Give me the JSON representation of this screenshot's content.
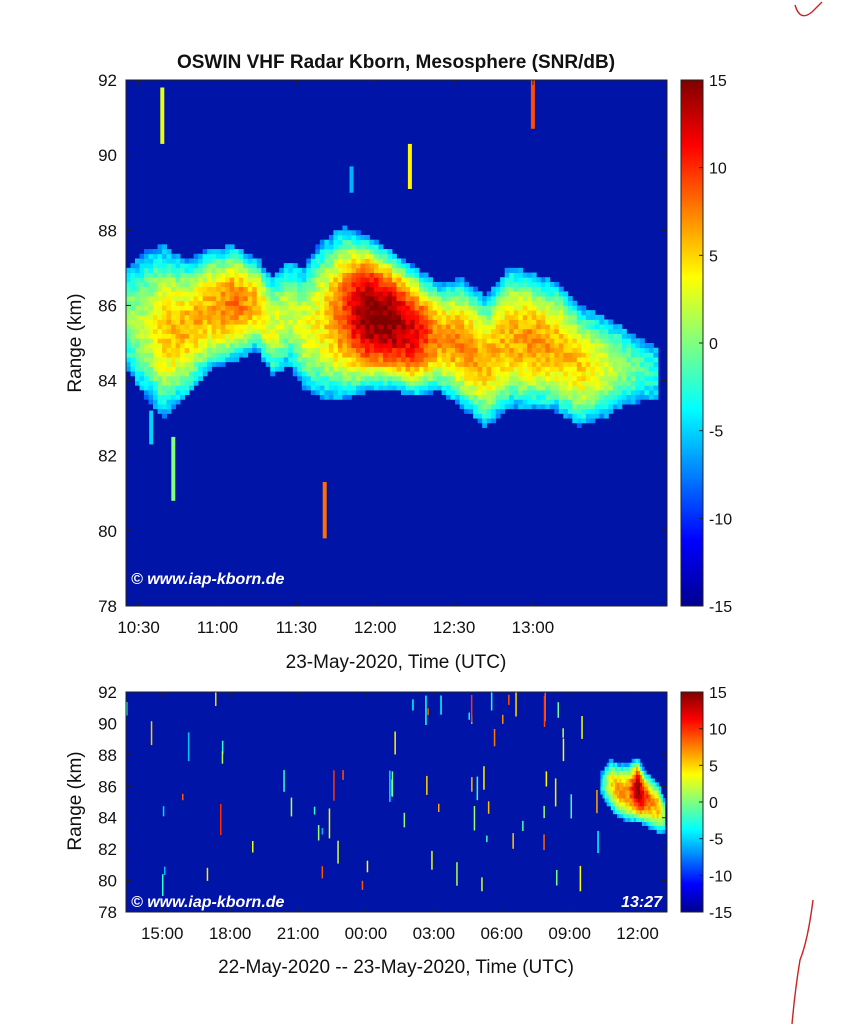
{
  "chart_data": [
    {
      "type": "heatmap",
      "title": "OSWIN VHF Radar Kborn, Mesosphere (SNR/dB)",
      "xlabel": "23-May-2020, Time (UTC)",
      "ylabel": "Range (km)",
      "xlim_hours": [
        10.42,
        13.85
      ],
      "ylim": [
        78,
        92
      ],
      "x_ticks": [
        {
          "value": 10.5,
          "label": "10:30"
        },
        {
          "value": 11.0,
          "label": "11:00"
        },
        {
          "value": 11.5,
          "label": "11:30"
        },
        {
          "value": 12.0,
          "label": "12:00"
        },
        {
          "value": 12.5,
          "label": "12:30"
        },
        {
          "value": 13.0,
          "label": "13:00"
        }
      ],
      "y_ticks": [
        {
          "value": 78,
          "label": "78"
        },
        {
          "value": 80,
          "label": "80"
        },
        {
          "value": 82,
          "label": "82"
        },
        {
          "value": 84,
          "label": "84"
        },
        {
          "value": 86,
          "label": "86"
        },
        {
          "value": 88,
          "label": "88"
        },
        {
          "value": 90,
          "label": "90"
        },
        {
          "value": 92,
          "label": "92"
        }
      ],
      "colorbar": {
        "min": -15,
        "max": 15,
        "ticks": [
          {
            "value": 15,
            "label": "15"
          },
          {
            "value": 10,
            "label": "10"
          },
          {
            "value": 5,
            "label": "5"
          },
          {
            "value": 0,
            "label": "0"
          },
          {
            "value": -5,
            "label": "-5"
          },
          {
            "value": -10,
            "label": "-10"
          },
          {
            "value": -15,
            "label": "-15"
          }
        ]
      },
      "background_snr": -13,
      "layer_profile": [
        {
          "t": 10.42,
          "bottom": 84.5,
          "top": 86.8,
          "peak": 0
        },
        {
          "t": 10.55,
          "bottom": 83.8,
          "top": 87.2,
          "peak": 2
        },
        {
          "t": 10.65,
          "bottom": 83.3,
          "top": 87.3,
          "peak": 5
        },
        {
          "t": 10.8,
          "bottom": 83.8,
          "top": 87.0,
          "peak": 6
        },
        {
          "t": 10.95,
          "bottom": 84.5,
          "top": 87.3,
          "peak": 6
        },
        {
          "t": 11.1,
          "bottom": 84.7,
          "top": 87.4,
          "peak": 8
        },
        {
          "t": 11.25,
          "bottom": 85.0,
          "top": 87.1,
          "peak": 6
        },
        {
          "t": 11.35,
          "bottom": 84.3,
          "top": 86.6,
          "peak": 3
        },
        {
          "t": 11.45,
          "bottom": 84.6,
          "top": 87.0,
          "peak": 2
        },
        {
          "t": 11.55,
          "bottom": 84.0,
          "top": 86.8,
          "peak": 3
        },
        {
          "t": 11.65,
          "bottom": 83.8,
          "top": 87.4,
          "peak": 4
        },
        {
          "t": 11.8,
          "bottom": 83.8,
          "top": 87.8,
          "peak": 9
        },
        {
          "t": 11.95,
          "bottom": 84.0,
          "top": 87.6,
          "peak": 15
        },
        {
          "t": 12.1,
          "bottom": 84.0,
          "top": 87.2,
          "peak": 15
        },
        {
          "t": 12.25,
          "bottom": 83.8,
          "top": 86.8,
          "peak": 12
        },
        {
          "t": 12.4,
          "bottom": 83.9,
          "top": 86.4,
          "peak": 7
        },
        {
          "t": 12.55,
          "bottom": 83.5,
          "top": 86.5,
          "peak": 7
        },
        {
          "t": 12.7,
          "bottom": 83.0,
          "top": 86.0,
          "peak": 6
        },
        {
          "t": 12.85,
          "bottom": 83.5,
          "top": 86.8,
          "peak": 6
        },
        {
          "t": 13.0,
          "bottom": 83.5,
          "top": 86.6,
          "peak": 7
        },
        {
          "t": 13.15,
          "bottom": 83.4,
          "top": 86.4,
          "peak": 6
        },
        {
          "t": 13.3,
          "bottom": 83.0,
          "top": 85.8,
          "peak": 5
        },
        {
          "t": 13.45,
          "bottom": 83.2,
          "top": 85.5,
          "peak": 3
        },
        {
          "t": 13.6,
          "bottom": 83.5,
          "top": 85.2,
          "peak": 0
        },
        {
          "t": 13.78,
          "bottom": 83.6,
          "top": 84.8,
          "peak": -3
        }
      ],
      "spikes": [
        {
          "t": 10.65,
          "y1": 90.3,
          "y2": 91.8,
          "snr": 3
        },
        {
          "t": 10.72,
          "y1": 80.8,
          "y2": 82.5,
          "snr": 0
        },
        {
          "t": 11.68,
          "y1": 79.8,
          "y2": 81.3,
          "snr": 8
        },
        {
          "t": 12.22,
          "y1": 89.1,
          "y2": 90.3,
          "snr": 4
        },
        {
          "t": 13.0,
          "y1": 90.7,
          "y2": 92.0,
          "snr": 9
        },
        {
          "t": 11.85,
          "y1": 89.0,
          "y2": 89.7,
          "snr": -6
        },
        {
          "t": 10.58,
          "y1": 82.3,
          "y2": 83.2,
          "snr": -5
        }
      ],
      "watermark": "© www.iap-kborn.de"
    },
    {
      "type": "heatmap",
      "title": "",
      "xlabel": "22-May-2020 -- 23-May-2020, Time (UTC)",
      "ylabel": "Range (km)",
      "xlim_hours": [
        13.4,
        37.3
      ],
      "ylim": [
        78,
        92
      ],
      "x_ticks": [
        {
          "value": 15,
          "label": "15:00"
        },
        {
          "value": 18,
          "label": "18:00"
        },
        {
          "value": 21,
          "label": "21:00"
        },
        {
          "value": 24,
          "label": "00:00"
        },
        {
          "value": 27,
          "label": "03:00"
        },
        {
          "value": 30,
          "label": "06:00"
        },
        {
          "value": 33,
          "label": "09:00"
        },
        {
          "value": 36,
          "label": "12:00"
        }
      ],
      "y_ticks": [
        {
          "value": 78,
          "label": "78"
        },
        {
          "value": 80,
          "label": "80"
        },
        {
          "value": 82,
          "label": "82"
        },
        {
          "value": 84,
          "label": "84"
        },
        {
          "value": 86,
          "label": "86"
        },
        {
          "value": 88,
          "label": "88"
        },
        {
          "value": 90,
          "label": "90"
        },
        {
          "value": 92,
          "label": "92"
        }
      ],
      "colorbar": {
        "min": -15,
        "max": 15,
        "ticks": [
          {
            "value": 15,
            "label": "15"
          },
          {
            "value": 10,
            "label": "10"
          },
          {
            "value": 5,
            "label": "5"
          },
          {
            "value": 0,
            "label": "0"
          },
          {
            "value": -5,
            "label": "-5"
          },
          {
            "value": -10,
            "label": "-10"
          },
          {
            "value": -15,
            "label": "-15"
          }
        ]
      },
      "background_snr": -13,
      "layer_profile": [
        {
          "t": 34.4,
          "bottom": 85.5,
          "top": 86.8,
          "peak": -4
        },
        {
          "t": 34.8,
          "bottom": 84.8,
          "top": 87.5,
          "peak": 4
        },
        {
          "t": 35.2,
          "bottom": 84.2,
          "top": 87.2,
          "peak": 7
        },
        {
          "t": 35.6,
          "bottom": 84.0,
          "top": 87.2,
          "peak": 7
        },
        {
          "t": 36.0,
          "bottom": 84.0,
          "top": 87.6,
          "peak": 15
        },
        {
          "t": 36.3,
          "bottom": 83.8,
          "top": 86.8,
          "peak": 11
        },
        {
          "t": 36.6,
          "bottom": 83.5,
          "top": 86.4,
          "peak": 7
        },
        {
          "t": 36.9,
          "bottom": 83.3,
          "top": 86.0,
          "peak": 6
        },
        {
          "t": 37.2,
          "bottom": 83.2,
          "top": 85.0,
          "peak": 0
        }
      ],
      "spike_field": {
        "seed": 7,
        "count": 70
      },
      "watermark": "© www.iap-kborn.de",
      "timestamp": "13:27"
    }
  ]
}
